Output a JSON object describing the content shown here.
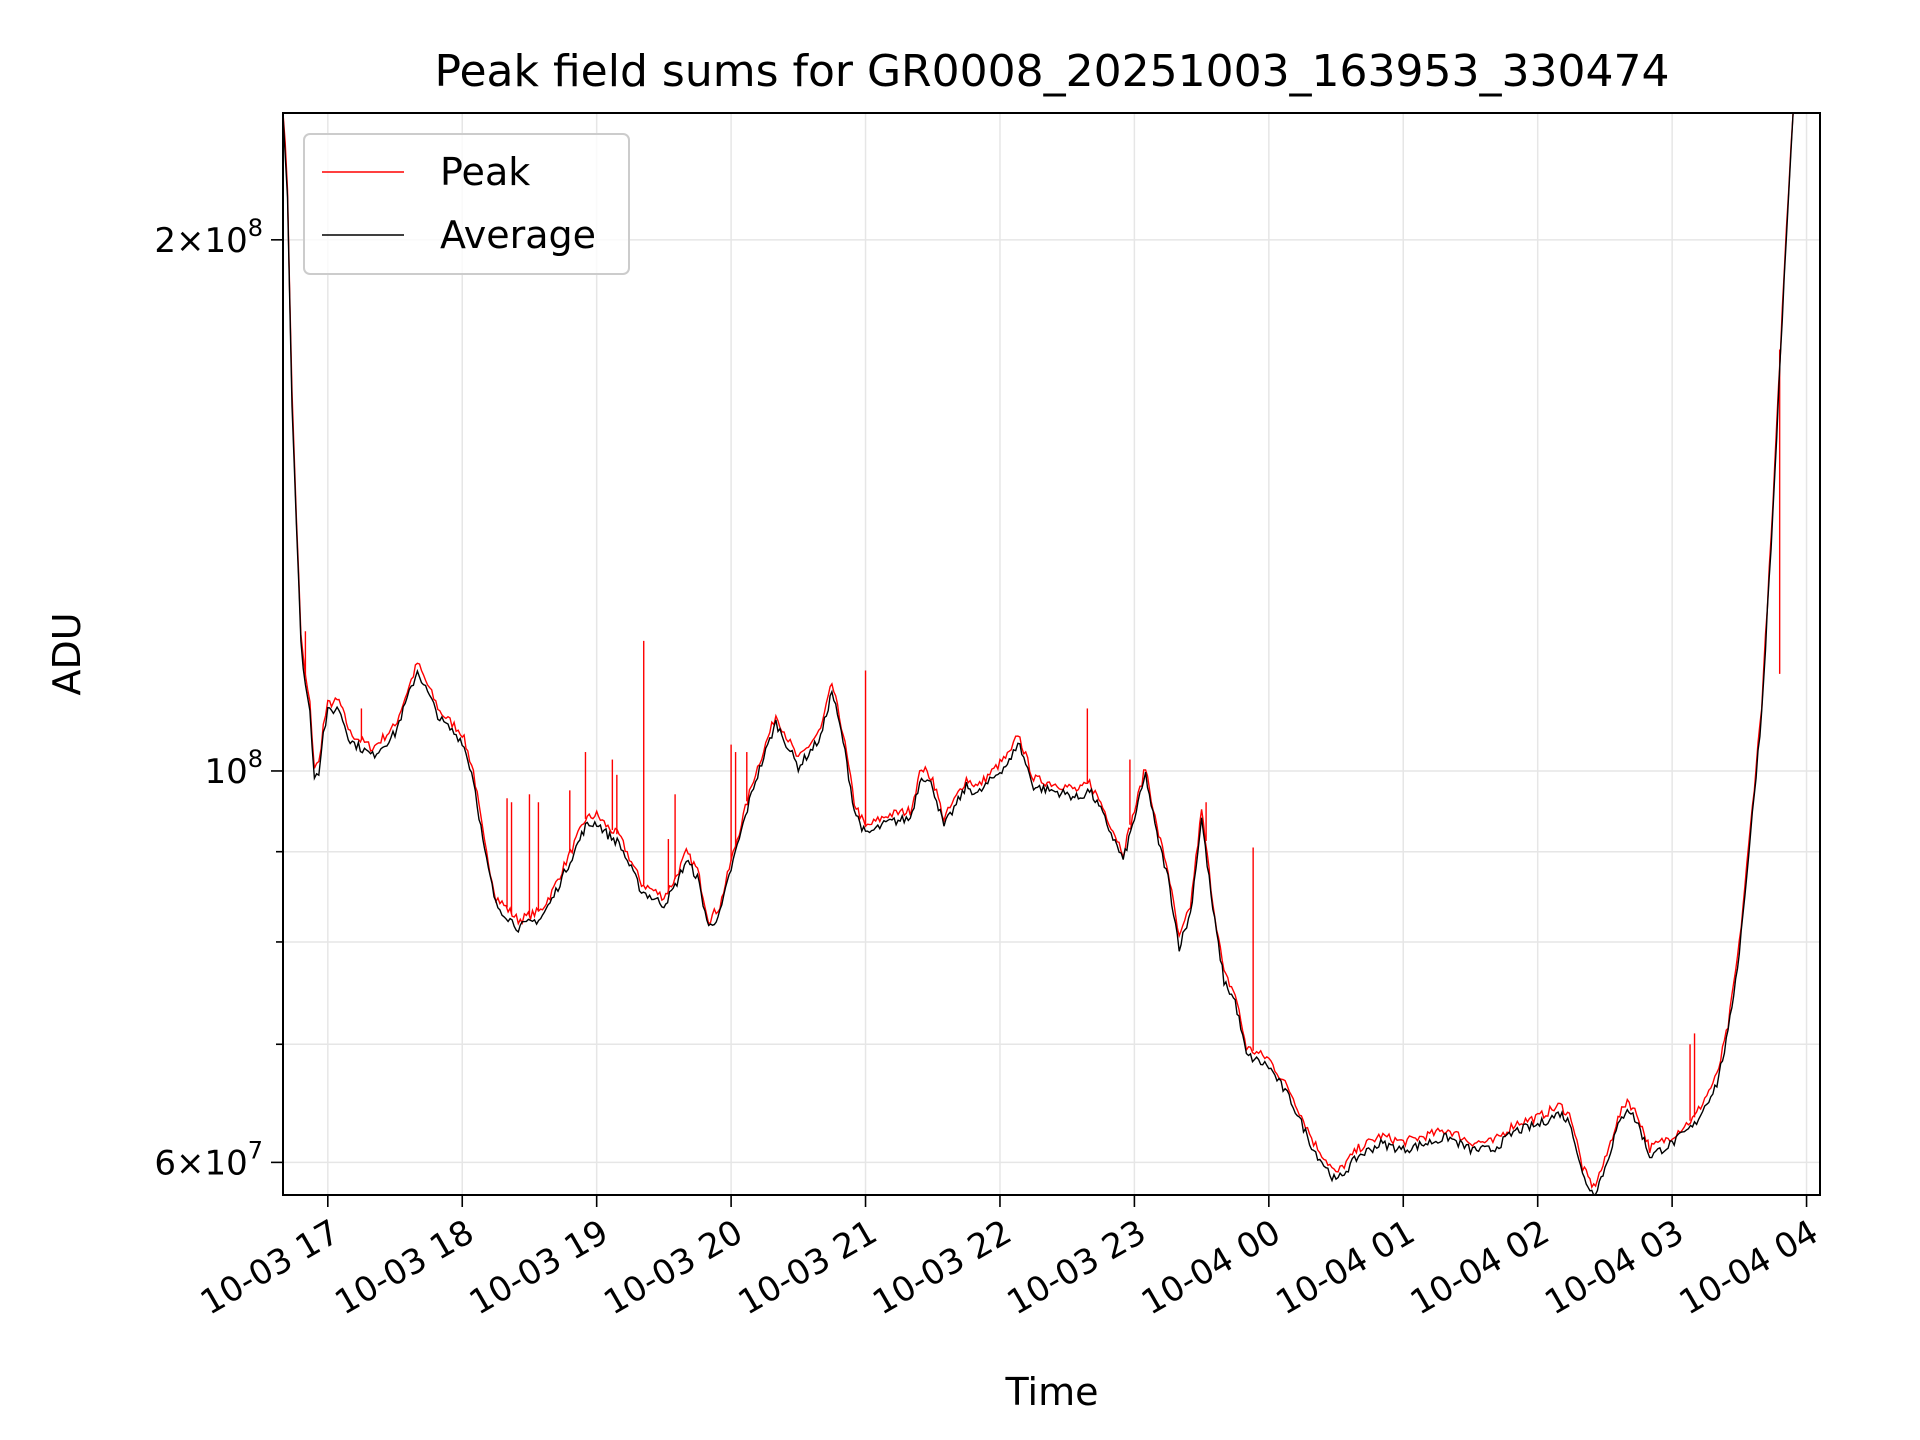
{
  "chart_data": {
    "type": "line",
    "title": "Peak field sums for GR0008_20251003_163953_330474",
    "xlabel": "Time",
    "ylabel": "ADU",
    "y_scale": "log",
    "grid": true,
    "legend_position": "top-left",
    "x_tick_labels": [
      "10-03 17",
      "10-03 18",
      "10-03 19",
      "10-03 20",
      "10-03 21",
      "10-03 22",
      "10-03 23",
      "10-04 00",
      "10-04 01",
      "10-04 02",
      "10-04 03",
      "10-04 04"
    ],
    "x_ticks": [
      "2025-10-03 17:00",
      "2025-10-03 18:00",
      "2025-10-03 19:00",
      "2025-10-03 20:00",
      "2025-10-03 21:00",
      "2025-10-03 22:00",
      "2025-10-03 23:00",
      "2025-10-04 00:00",
      "2025-10-04 01:00",
      "2025-10-04 02:00",
      "2025-10-04 03:00",
      "2025-10-04 04:00"
    ],
    "xlim": [
      "2025-10-03 16:40",
      "2025-10-04 04:06"
    ],
    "ylim": [
      57500000,
      236000000
    ],
    "y_major_ticks": [
      {
        "value": 60000000,
        "base": "6",
        "exp": "7"
      },
      {
        "value": 100000000,
        "base": "",
        "exp": "8"
      },
      {
        "value": 200000000,
        "base": "2",
        "exp": "8"
      }
    ],
    "y_minor_ticks": [
      70000000,
      80000000,
      90000000
    ],
    "series": [
      {
        "name": "Average",
        "color": "#000000",
        "points": [
          [
            "2025-10-03 16:40",
            236000000
          ],
          [
            "2025-10-03 16:42",
            212000000
          ],
          [
            "2025-10-03 16:44",
            162000000
          ],
          [
            "2025-10-03 16:46",
            138000000
          ],
          [
            "2025-10-03 16:48",
            118000000
          ],
          [
            "2025-10-03 16:50",
            112000000
          ],
          [
            "2025-10-03 16:52",
            108000000
          ],
          [
            "2025-10-03 16:54",
            99500000
          ],
          [
            "2025-10-03 16:56",
            100000000
          ],
          [
            "2025-10-03 16:58",
            105000000
          ],
          [
            "2025-10-03 17:00",
            108000000
          ],
          [
            "2025-10-03 17:05",
            108500000
          ],
          [
            "2025-10-03 17:10",
            104000000
          ],
          [
            "2025-10-03 17:20",
            102000000
          ],
          [
            "2025-10-03 17:30",
            105000000
          ],
          [
            "2025-10-03 17:40",
            114000000
          ],
          [
            "2025-10-03 17:50",
            107000000
          ],
          [
            "2025-10-03 18:00",
            104000000
          ],
          [
            "2025-10-03 18:05",
            99000000
          ],
          [
            "2025-10-03 18:10",
            90000000
          ],
          [
            "2025-10-03 18:15",
            84000000
          ],
          [
            "2025-10-03 18:25",
            81500000
          ],
          [
            "2025-10-03 18:35",
            82500000
          ],
          [
            "2025-10-03 18:40",
            84500000
          ],
          [
            "2025-10-03 18:50",
            90000000
          ],
          [
            "2025-10-03 18:55",
            93000000
          ],
          [
            "2025-10-03 19:00",
            93500000
          ],
          [
            "2025-10-03 19:05",
            92000000
          ],
          [
            "2025-10-03 19:10",
            91000000
          ],
          [
            "2025-10-03 19:20",
            85500000
          ],
          [
            "2025-10-03 19:30",
            84000000
          ],
          [
            "2025-10-03 19:35",
            86000000
          ],
          [
            "2025-10-03 19:40",
            89000000
          ],
          [
            "2025-10-03 19:45",
            87000000
          ],
          [
            "2025-10-03 19:50",
            81500000
          ],
          [
            "2025-10-03 19:55",
            83000000
          ],
          [
            "2025-10-03 20:00",
            88000000
          ],
          [
            "2025-10-03 20:10",
            98000000
          ],
          [
            "2025-10-03 20:20",
            106500000
          ],
          [
            "2025-10-03 20:30",
            100500000
          ],
          [
            "2025-10-03 20:40",
            104500000
          ],
          [
            "2025-10-03 20:45",
            111000000
          ],
          [
            "2025-10-03 20:50",
            104000000
          ],
          [
            "2025-10-03 20:55",
            95000000
          ],
          [
            "2025-10-03 21:00",
            92000000
          ],
          [
            "2025-10-03 21:10",
            93500000
          ],
          [
            "2025-10-03 21:20",
            94000000
          ],
          [
            "2025-10-03 21:25",
            99500000
          ],
          [
            "2025-10-03 21:30",
            98000000
          ],
          [
            "2025-10-03 21:35",
            93000000
          ],
          [
            "2025-10-03 21:45",
            98000000
          ],
          [
            "2025-10-03 21:50",
            97000000
          ],
          [
            "2025-10-03 22:00",
            100000000
          ],
          [
            "2025-10-03 22:05",
            101500000
          ],
          [
            "2025-10-03 22:08",
            104000000
          ],
          [
            "2025-10-03 22:15",
            98000000
          ],
          [
            "2025-10-03 22:30",
            97000000
          ],
          [
            "2025-10-03 22:35",
            96500000
          ],
          [
            "2025-10-03 22:40",
            97500000
          ],
          [
            "2025-10-03 22:45",
            95000000
          ],
          [
            "2025-10-03 22:55",
            89000000
          ],
          [
            "2025-10-03 23:00",
            94000000
          ],
          [
            "2025-10-03 23:05",
            99500000
          ],
          [
            "2025-10-03 23:10",
            92000000
          ],
          [
            "2025-10-03 23:15",
            87000000
          ],
          [
            "2025-10-03 23:20",
            79500000
          ],
          [
            "2025-10-03 23:25",
            83000000
          ],
          [
            "2025-10-03 23:30",
            94000000
          ],
          [
            "2025-10-03 23:35",
            83500000
          ],
          [
            "2025-10-03 23:40",
            76000000
          ],
          [
            "2025-10-03 23:45",
            74000000
          ],
          [
            "2025-10-03 23:50",
            69000000
          ],
          [
            "2025-10-04 00:00",
            68000000
          ],
          [
            "2025-10-04 00:10",
            65000000
          ],
          [
            "2025-10-04 00:20",
            61000000
          ],
          [
            "2025-10-04 00:30",
            58500000
          ],
          [
            "2025-10-04 00:40",
            60500000
          ],
          [
            "2025-10-04 00:50",
            61500000
          ],
          [
            "2025-10-04 01:00",
            61000000
          ],
          [
            "2025-10-04 01:10",
            61500000
          ],
          [
            "2025-10-04 01:20",
            62000000
          ],
          [
            "2025-10-04 01:30",
            61000000
          ],
          [
            "2025-10-04 01:40",
            61000000
          ],
          [
            "2025-10-04 01:50",
            62500000
          ],
          [
            "2025-10-04 02:00",
            63000000
          ],
          [
            "2025-10-04 02:10",
            64000000
          ],
          [
            "2025-10-04 02:15",
            63000000
          ],
          [
            "2025-10-04 02:20",
            59000000
          ],
          [
            "2025-10-04 02:25",
            57500000
          ],
          [
            "2025-10-04 02:30",
            59500000
          ],
          [
            "2025-10-04 02:35",
            62500000
          ],
          [
            "2025-10-04 02:40",
            64500000
          ],
          [
            "2025-10-04 02:45",
            63000000
          ],
          [
            "2025-10-04 02:50",
            60500000
          ],
          [
            "2025-10-04 03:00",
            61500000
          ],
          [
            "2025-10-04 03:10",
            63000000
          ],
          [
            "2025-10-04 03:20",
            66500000
          ],
          [
            "2025-10-04 03:25",
            71000000
          ],
          [
            "2025-10-04 03:30",
            79000000
          ],
          [
            "2025-10-04 03:35",
            92000000
          ],
          [
            "2025-10-04 03:40",
            108000000
          ],
          [
            "2025-10-04 03:45",
            140000000
          ],
          [
            "2025-10-04 03:50",
            190000000
          ],
          [
            "2025-10-04 03:54",
            236000000
          ]
        ]
      },
      {
        "name": "Peak",
        "color": "#ff0000",
        "offset_factor": 1.01,
        "spikes": [
          [
            "2025-10-03 16:50",
            120000000
          ],
          [
            "2025-10-03 17:15",
            108500000
          ],
          [
            "2025-10-03 18:20",
            96500000
          ],
          [
            "2025-10-03 18:22",
            96000000
          ],
          [
            "2025-10-03 18:30",
            97000000
          ],
          [
            "2025-10-03 18:34",
            96000000
          ],
          [
            "2025-10-03 18:48",
            97500000
          ],
          [
            "2025-10-03 18:55",
            102500000
          ],
          [
            "2025-10-03 19:07",
            101500000
          ],
          [
            "2025-10-03 19:09",
            99500000
          ],
          [
            "2025-10-03 19:21",
            118500000
          ],
          [
            "2025-10-03 19:32",
            91500000
          ],
          [
            "2025-10-03 19:35",
            97000000
          ],
          [
            "2025-10-03 20:00",
            103500000
          ],
          [
            "2025-10-03 20:02",
            102500000
          ],
          [
            "2025-10-03 20:07",
            102500000
          ],
          [
            "2025-10-03 21:00",
            114000000
          ],
          [
            "2025-10-03 22:39",
            108500000
          ],
          [
            "2025-10-03 22:58",
            101500000
          ],
          [
            "2025-10-03 23:32",
            96000000
          ],
          [
            "2025-10-03 23:53",
            90500000
          ],
          [
            "2025-10-04 03:10",
            71000000
          ],
          [
            "2025-10-04 03:08",
            70000000
          ],
          [
            "2025-10-04 03:48",
            113500000
          ]
        ]
      }
    ]
  }
}
